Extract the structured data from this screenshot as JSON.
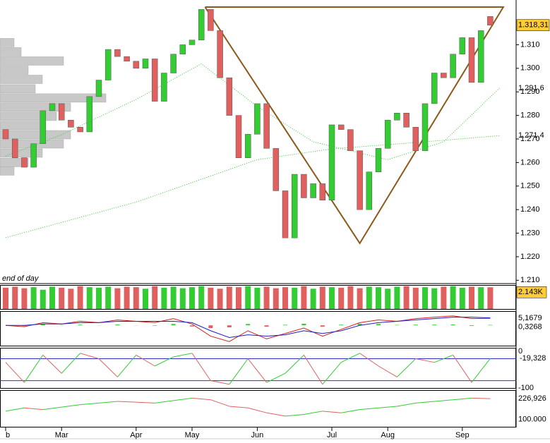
{
  "chart_data": {
    "type": "candlestick",
    "caption": "end of day",
    "xticks": [
      {
        "value": 0,
        "label": "b"
      },
      {
        "value": 6,
        "label": "Mar"
      },
      {
        "value": 14,
        "label": "Apr"
      },
      {
        "value": 20,
        "label": "May"
      },
      {
        "value": 27,
        "label": "Jun"
      },
      {
        "value": 35,
        "label": "Jul"
      },
      {
        "value": 41,
        "label": "Aug"
      },
      {
        "value": 49,
        "label": "Sep"
      }
    ],
    "open": [
      1.274,
      1.27,
      1.262,
      1.258,
      1.268,
      1.282,
      1.285,
      1.278,
      1.275,
      1.273,
      1.288,
      1.295,
      1.308,
      1.305,
      1.303,
      1.3,
      1.304,
      1.286,
      1.298,
      1.306,
      1.31,
      1.312,
      1.325,
      1.316,
      1.296,
      1.28,
      1.262,
      1.272,
      1.285,
      1.266,
      1.248,
      1.228,
      1.255,
      1.245,
      1.251,
      1.244,
      1.276,
      1.274,
      1.265,
      1.24,
      1.256,
      1.266,
      1.278,
      1.281,
      1.275,
      1.265,
      1.285,
      1.298,
      1.296,
      1.306,
      1.313,
      1.294,
      1.322
    ],
    "close": [
      1.27,
      1.262,
      1.258,
      1.268,
      1.282,
      1.285,
      1.278,
      1.275,
      1.273,
      1.288,
      1.295,
      1.308,
      1.305,
      1.303,
      1.3,
      1.304,
      1.286,
      1.298,
      1.306,
      1.31,
      1.312,
      1.325,
      1.316,
      1.296,
      1.28,
      1.262,
      1.272,
      1.285,
      1.266,
      1.248,
      1.228,
      1.255,
      1.245,
      1.251,
      1.244,
      1.276,
      1.274,
      1.265,
      1.24,
      1.256,
      1.266,
      1.278,
      1.281,
      1.275,
      1.265,
      1.285,
      1.298,
      1.296,
      1.306,
      1.313,
      1.294,
      1.316,
      1.31831
    ],
    "up_color": "#33cc33",
    "down_color": "#e06060",
    "ylim": [
      1.2086,
      1.329
    ],
    "yticks": [
      {
        "value": 1.21,
        "label": "1.210"
      },
      {
        "value": 1.22,
        "label": "1.220"
      },
      {
        "value": 1.23,
        "label": "1.230"
      },
      {
        "value": 1.24,
        "label": "1.240"
      },
      {
        "value": 1.25,
        "label": "1.250"
      },
      {
        "value": 1.26,
        "label": "1.260"
      },
      {
        "value": 1.27,
        "label": "1.270"
      },
      {
        "value": 1.28,
        "label": "1.280"
      },
      {
        "value": 1.29,
        "label": "1.290"
      },
      {
        "value": 1.3,
        "label": "1.300"
      },
      {
        "value": 1.31,
        "label": "1.310"
      }
    ],
    "last_price_label": "1.318,31",
    "ma": [
      {
        "color": "#33cc33",
        "x": [
          0,
          6,
          14,
          21,
          27,
          33,
          41,
          47,
          53
        ],
        "values": [
          1.2627,
          1.2718,
          1.2868,
          1.3019,
          1.2838,
          1.2688,
          1.2612,
          1.2688,
          1.2916
        ],
        "last_label": "1.291,6"
      },
      {
        "color": "#33cc33",
        "x": [
          0,
          14,
          27,
          35,
          45,
          53
        ],
        "values": [
          1.2281,
          1.2432,
          1.2612,
          1.2658,
          1.2688,
          1.2714
        ],
        "last_label": "1.271,4"
      }
    ],
    "pattern": {
      "color": "#8b5a1a",
      "x": [
        21.4,
        38,
        53.4,
        21.4
      ],
      "values": [
        1.326,
        1.2257,
        1.326,
        1.326
      ]
    },
    "volume_profile": {
      "color": "#c8c8c8",
      "prices": [
        1.3109,
        1.307,
        1.3031,
        1.2992,
        1.2953,
        1.2913,
        1.2874,
        1.2835,
        1.2796,
        1.2757,
        1.2718,
        1.2679,
        1.264,
        1.26,
        1.2564
      ],
      "values": [
        20,
        30,
        90,
        40,
        60,
        50,
        150,
        100,
        80,
        60,
        100,
        90,
        60,
        40,
        20
      ],
      "xlim": [
        0,
        779
      ]
    },
    "volume": {
      "ylim": [
        0,
        2300
      ],
      "values": [
        2100,
        2200,
        2050,
        2150,
        1900,
        2200,
        2100,
        2000,
        2250,
        2150,
        2100,
        2200,
        2050,
        2200,
        2150,
        2000,
        2250,
        2100,
        2200,
        2050,
        2150,
        2250,
        2100,
        2000,
        2200,
        2150,
        2250,
        2100,
        2200,
        2050,
        2150,
        2100,
        2250,
        2000,
        2200,
        2150,
        2100,
        2250,
        2050,
        2200,
        2150,
        2000,
        2200,
        2250,
        2100,
        2150,
        2050,
        2200,
        2250,
        2100,
        2200,
        2150,
        2143
      ],
      "last_label": "2.143K"
    },
    "macd": {
      "ylim": [
        -15,
        10
      ],
      "x": [
        0,
        2,
        4,
        6,
        8,
        10,
        12,
        14,
        16,
        18,
        20,
        22,
        24,
        26,
        28,
        30,
        32,
        34,
        36,
        38,
        40,
        42,
        44,
        46,
        48,
        50,
        52
      ],
      "line": [
        0,
        -1,
        2,
        1,
        3,
        2,
        4,
        3,
        2,
        5,
        1,
        -8,
        -12,
        -4,
        -10,
        -6,
        -2,
        -8,
        -3,
        2,
        4,
        3,
        5,
        6,
        7,
        5,
        5.1679
      ],
      "signal": [
        0,
        0,
        1,
        1,
        2,
        2,
        3,
        3,
        3,
        3,
        2,
        -4,
        -9,
        -7,
        -8,
        -7,
        -4,
        -6,
        -4,
        0,
        2,
        3,
        4,
        5,
        6,
        6,
        5.5
      ],
      "histogram": [
        0,
        -0.5,
        0.8,
        0.2,
        0.5,
        0.1,
        0.6,
        0.1,
        -0.3,
        1,
        -0.8,
        -2,
        -1.5,
        1,
        -1,
        0.4,
        1.2,
        -1,
        0.5,
        1.2,
        1,
        0.3,
        0.5,
        0.5,
        0.6,
        -0.4,
        0.3268
      ],
      "line_label": "5,1679",
      "histogram_label": "0,3268"
    },
    "stochastic": {
      "ylim": [
        -102,
        8
      ],
      "yticks": [
        0,
        -100
      ],
      "levels": [
        -20,
        -80
      ],
      "x": [
        0,
        2,
        4,
        6,
        8,
        10,
        12,
        14,
        16,
        18,
        20,
        22,
        24,
        26,
        28,
        30,
        32,
        34,
        36,
        38,
        40,
        42,
        44,
        46,
        48,
        50,
        52
      ],
      "values": [
        -30,
        -85,
        -10,
        -60,
        -5,
        -20,
        -70,
        -10,
        -40,
        -15,
        -5,
        -80,
        -90,
        -20,
        -85,
        -60,
        -10,
        -90,
        -30,
        -5,
        -40,
        -70,
        -20,
        -30,
        -10,
        -85,
        -19.328
      ],
      "last_label": "-19,328"
    },
    "cci": {
      "ylim": [
        50,
        275
      ],
      "yticks": [
        {
          "value": 100,
          "label": "100.000"
        }
      ],
      "x": [
        0,
        2,
        4,
        6,
        8,
        10,
        12,
        14,
        16,
        18,
        20,
        22,
        24,
        26,
        28,
        30,
        32,
        34,
        36,
        38,
        40,
        42,
        44,
        46,
        48,
        50,
        52
      ],
      "values": [
        150,
        170,
        160,
        175,
        190,
        200,
        210,
        205,
        200,
        215,
        230,
        220,
        180,
        170,
        140,
        120,
        130,
        150,
        140,
        160,
        170,
        180,
        200,
        210,
        220,
        230,
        226.926
      ],
      "last_label": "226,926"
    }
  }
}
